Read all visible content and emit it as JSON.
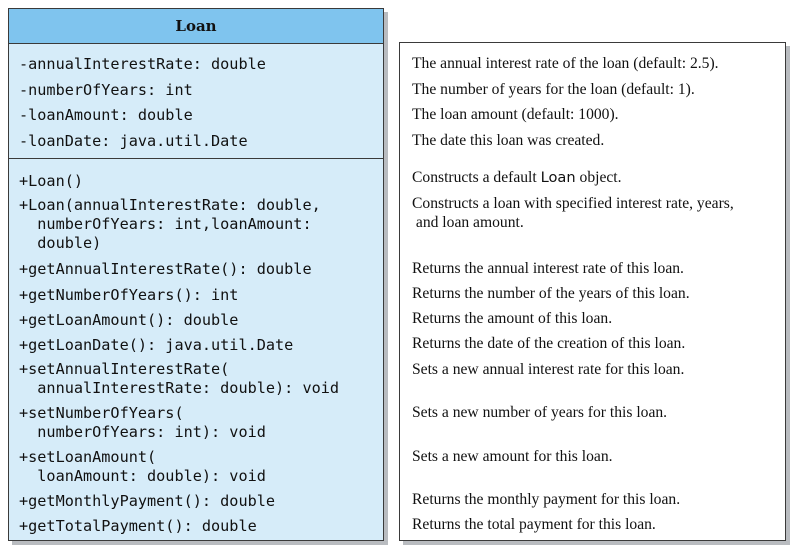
{
  "uml_class": {
    "name": "Loan",
    "attributes": [
      "-annualInterestRate: double",
      "-numberOfYears: int",
      "-loanAmount: double",
      "-loanDate: java.util.Date"
    ],
    "methods": [
      [
        "+Loan()"
      ],
      [
        "+Loan(annualInterestRate: double,",
        "  numberOfYears: int,loanAmount:",
        "  double)"
      ],
      [
        "+getAnnualInterestRate(): double"
      ],
      [
        "+getNumberOfYears(): int"
      ],
      [
        "+getLoanAmount(): double"
      ],
      [
        "+getLoanDate(): java.util.Date"
      ],
      [
        "+setAnnualInterestRate(",
        "  annualInterestRate: double): void"
      ],
      [
        "+setNumberOfYears(",
        "  numberOfYears: int): void"
      ],
      [
        "+setLoanAmount(",
        "  loanAmount: double): void"
      ],
      [
        "+getMonthlyPayment(): double"
      ],
      [
        "+getTotalPayment(): double"
      ]
    ]
  },
  "descriptions": {
    "attributes": [
      "The annual interest rate of the loan (default: 2.5).",
      "The number of years for the loan (default: 1).",
      "The loan amount (default: 1000).",
      "The date this loan was created."
    ],
    "constructor_default": {
      "before": "Constructs a default ",
      "code": "Loan",
      "after": " object."
    },
    "methods": [
      [
        "Constructs a loan with specified interest rate, years,",
        " and loan amount."
      ],
      [
        "Returns the annual interest rate of this loan."
      ],
      [
        "Returns the number of the years of this loan."
      ],
      [
        "Returns the amount of this loan."
      ],
      [
        "Returns the date of the creation of this loan."
      ],
      [
        "Sets a new annual interest rate for this loan."
      ],
      [
        "Sets a new number of years for this loan."
      ],
      [
        "Sets a new amount for this loan."
      ],
      [
        "Returns the monthly payment for this loan."
      ],
      [
        "Returns the total payment for this loan."
      ]
    ]
  },
  "colors": {
    "header_fill": "#7fc4ee",
    "class_body_fill": "#d6ecf9",
    "border": "#3a3a3a",
    "shadow": "#b9bcc0"
  }
}
